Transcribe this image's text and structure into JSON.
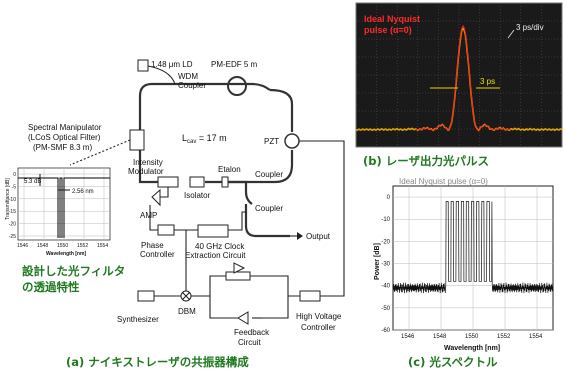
{
  "diagram": {
    "ld": "1.48 μm LD",
    "edf": "PM-EDF 5 m",
    "wdm_1": "WDM",
    "wdm_2": "Coupler",
    "spectral_1": "Spectral Manipulator",
    "spectral_2": "(LCoS Optical Filter)",
    "spectral_3": "(PM-SMF 8.3 m)",
    "lcav": "L",
    "lcav_sub": "cav",
    "lcav_val": " = 17 m",
    "pzt": "PZT",
    "intensity_1": "Intensity",
    "intensity_2": "Modulator",
    "etalon": "Etalon",
    "coupler_a": "Coupler",
    "isolator": "Isolator",
    "coupler_b": "Coupler",
    "output": "Output",
    "amp": "AMP",
    "phase_1": "Phase",
    "phase_2": "Controller",
    "clock_1": "40  GHz Clock",
    "clock_2": "Extraction Circuit",
    "synth": "Synthesizer",
    "dbm": "DBM",
    "feedback_1": "Feedback",
    "feedback_2": "Circuit",
    "hv_1": "High Voltage",
    "hv_2": "Controller"
  },
  "filter_plot": {
    "ylabel": "Transmittance [dB]",
    "xlabel": "Wavelength [nm]",
    "xticks": [
      "1546",
      "1548",
      "1550",
      "1552",
      "1554"
    ],
    "yticks": [
      "0",
      "-5",
      "-10",
      "-15",
      "-20",
      "-25"
    ],
    "ann_db": "5.3 dB",
    "ann_nm": "2.56 nm"
  },
  "pulse_panel": {
    "title_1": "Ideal Nyquist",
    "title_2": "pulse (α=0)",
    "scale": "3 ps/div",
    "width": "3 ps"
  },
  "spectrum_panel": {
    "legend": "Ideal Nyquist pulse (α=0)",
    "ylabel": "Power [dB]",
    "xlabel": "Wavelength [nm]",
    "yticks": [
      "0",
      "-10",
      "-20",
      "-30",
      "-40",
      "-50",
      "-60"
    ],
    "xticks": [
      "1546",
      "1548",
      "1550",
      "1552",
      "1554"
    ]
  },
  "captions": {
    "filter_1": "設計した光フィルタ",
    "filter_2": "の透過特性",
    "a": "(a) ナイキストレーザの共振器構成",
    "b": "(b) レーザ出力光パルス",
    "c": "(c) 光スペクトル"
  },
  "colors": {
    "caption": "#1f7a1f",
    "pulse_trace": "#e0a000",
    "pulse_ideal": "#ff2020",
    "pulse_bg": "#1a1a1a"
  }
}
